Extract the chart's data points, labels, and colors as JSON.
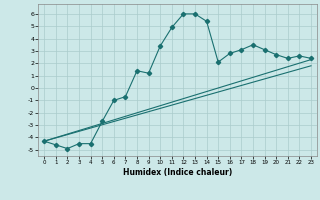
{
  "xlabel": "Humidex (Indice chaleur)",
  "background_color": "#cce8e8",
  "grid_color": "#aacccc",
  "line_color": "#1a7070",
  "xlim": [
    -0.5,
    23.5
  ],
  "ylim": [
    -5.5,
    6.8
  ],
  "xticks": [
    0,
    1,
    2,
    3,
    4,
    5,
    6,
    7,
    8,
    9,
    10,
    11,
    12,
    13,
    14,
    15,
    16,
    17,
    18,
    19,
    20,
    21,
    22,
    23
  ],
  "yticks": [
    -5,
    -4,
    -3,
    -2,
    -1,
    0,
    1,
    2,
    3,
    4,
    5,
    6
  ],
  "curve1_x": [
    0,
    1,
    2,
    3,
    4,
    5,
    6,
    7,
    8,
    9,
    10,
    11,
    12,
    13,
    14,
    15,
    16,
    17,
    18,
    19,
    20,
    21,
    22,
    23
  ],
  "curve1_y": [
    -4.3,
    -4.6,
    -4.9,
    -4.5,
    -4.5,
    -2.7,
    -1.0,
    -0.7,
    1.4,
    1.2,
    3.4,
    4.9,
    6.0,
    6.0,
    5.4,
    2.1,
    2.8,
    3.1,
    3.5,
    3.1,
    2.7,
    2.4,
    2.6,
    2.4
  ],
  "line2_x": [
    0,
    23
  ],
  "line2_y": [
    -4.3,
    2.3
  ],
  "line3_x": [
    0,
    23
  ],
  "line3_y": [
    -4.3,
    1.8
  ]
}
